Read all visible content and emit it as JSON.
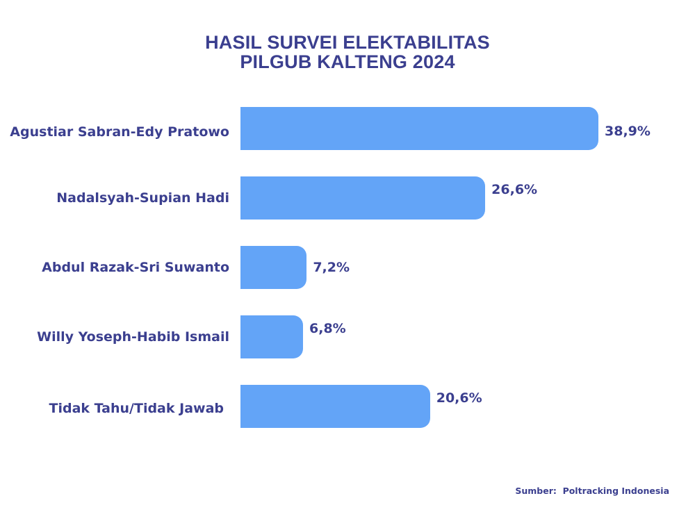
{
  "chart_data": {
    "type": "bar",
    "orientation": "horizontal",
    "title_lines": [
      "HASIL SURVEI ELEKTABILITAS",
      "PILGUB KALTENG 2024"
    ],
    "categories": [
      "Agustiar Sabran-Edy Pratowo",
      "Nadalsyah-Supian Hadi",
      "Abdul Razak-Sri Suwanto",
      "Willy Yoseph-Habib Ismail",
      "Tidak Tahu/Tidak Jawab"
    ],
    "values": [
      38.9,
      26.6,
      7.2,
      6.8,
      20.6
    ],
    "value_labels": [
      "38,9%",
      "26,6%",
      "7,2%",
      "6,8%",
      "20,6%"
    ],
    "grid": false,
    "legend": "none",
    "bar_color": "#63a4f7",
    "text_color": "#3b3f8f"
  },
  "source": "Sumber:  Poltracking Indonesia"
}
